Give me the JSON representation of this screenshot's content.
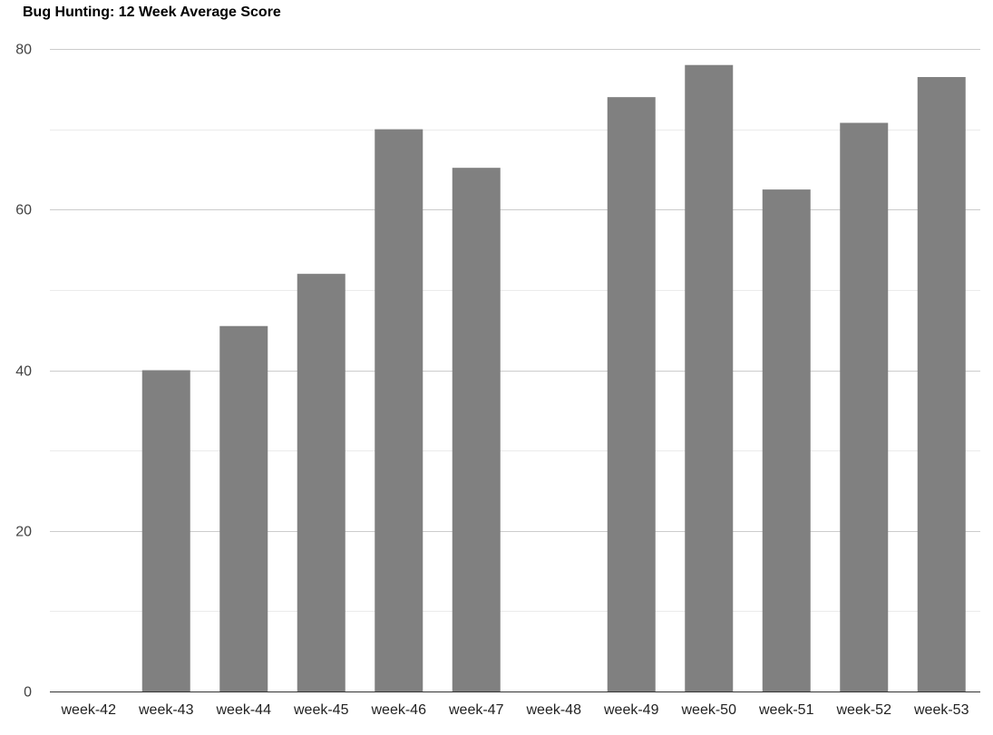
{
  "chart_data": {
    "type": "bar",
    "title": "Bug Hunting: 12 Week Average Score",
    "xlabel": "",
    "ylabel": "",
    "categories": [
      "week-42",
      "week-43",
      "week-44",
      "week-45",
      "week-46",
      "week-47",
      "week-48",
      "week-49",
      "week-50",
      "week-51",
      "week-52",
      "week-53"
    ],
    "values": [
      0,
      40,
      45.5,
      52,
      70,
      65.2,
      0,
      74,
      78,
      62.5,
      70.8,
      76.5
    ],
    "ylim": [
      0,
      80
    ],
    "yticks": [
      0,
      20,
      40,
      60,
      80
    ],
    "yticks_labels": [
      "0",
      "20",
      "40",
      "60",
      "80"
    ],
    "minor_grid_step": 10,
    "grid": true,
    "legend": "none",
    "bar_color": "#808080",
    "grid_color": "#cccccc",
    "minor_grid_color": "#ebebeb",
    "axis_color": "#333333"
  }
}
